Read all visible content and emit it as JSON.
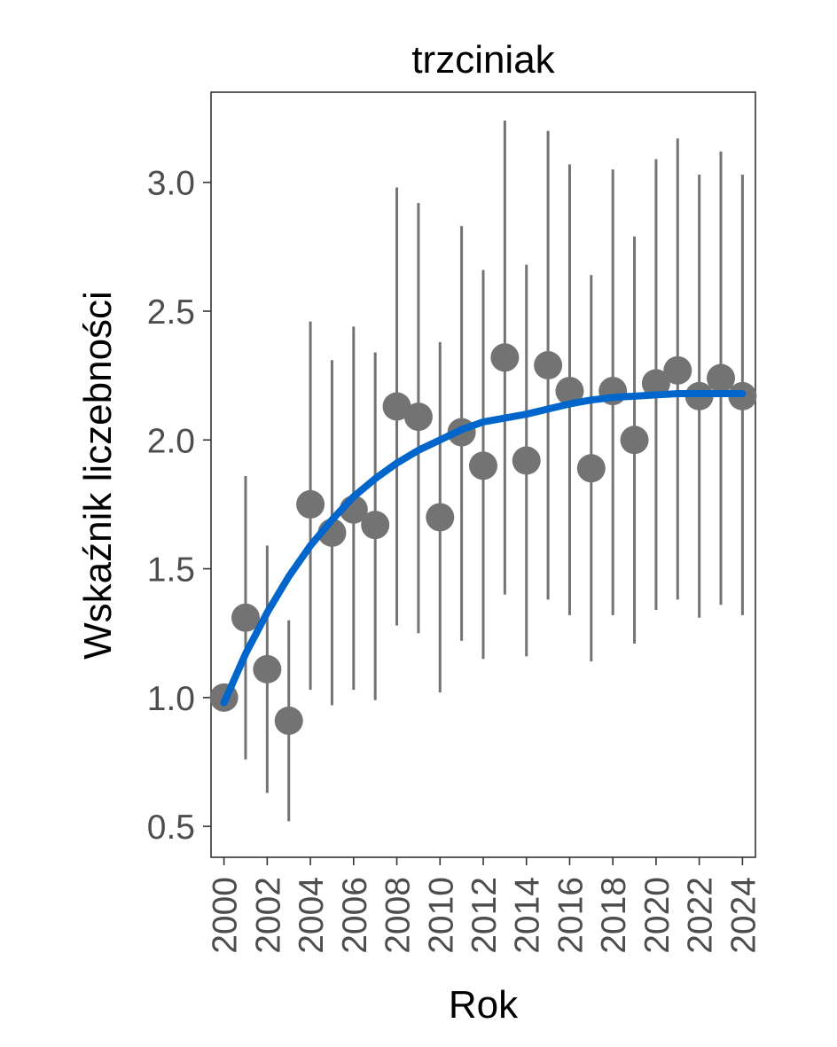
{
  "chart_data": {
    "type": "scatter",
    "title": "trzciniak",
    "xlabel": "Rok",
    "ylabel": "Wskaźnik liczebności",
    "xlim": [
      1999.4,
      2024.6
    ],
    "ylim": [
      0.38,
      3.35
    ],
    "grid": false,
    "x_ticks": [
      "2000",
      "2002",
      "2004",
      "2006",
      "2008",
      "2010",
      "2012",
      "2014",
      "2016",
      "2018",
      "2020",
      "2022",
      "2024"
    ],
    "y_ticks": [
      "0.5",
      "1.0",
      "1.5",
      "2.0",
      "2.5",
      "3.0"
    ],
    "series": [
      {
        "kind": "points_with_error_bars",
        "x": [
          2000,
          2001,
          2002,
          2003,
          2004,
          2005,
          2006,
          2007,
          2008,
          2009,
          2010,
          2011,
          2012,
          2013,
          2014,
          2015,
          2016,
          2017,
          2018,
          2019,
          2020,
          2021,
          2022,
          2023,
          2024
        ],
        "y": [
          1.0,
          1.31,
          1.11,
          0.91,
          1.75,
          1.64,
          1.73,
          1.67,
          2.13,
          2.09,
          1.7,
          2.03,
          1.9,
          2.32,
          1.92,
          2.29,
          2.19,
          1.89,
          2.19,
          2.0,
          2.22,
          2.27,
          2.17,
          2.24,
          2.17
        ],
        "lower": [
          null,
          0.76,
          0.63,
          0.52,
          1.03,
          0.97,
          1.03,
          0.99,
          1.28,
          1.25,
          1.02,
          1.22,
          1.15,
          1.4,
          1.16,
          1.38,
          1.32,
          1.14,
          1.32,
          1.21,
          1.34,
          1.38,
          1.31,
          1.36,
          1.32
        ],
        "upper": [
          null,
          1.86,
          1.59,
          1.3,
          2.46,
          2.31,
          2.44,
          2.34,
          2.98,
          2.92,
          2.38,
          2.83,
          2.66,
          3.24,
          2.68,
          3.2,
          3.07,
          2.64,
          3.05,
          2.79,
          3.09,
          3.17,
          3.03,
          3.12,
          3.03
        ],
        "color": "#737373"
      },
      {
        "kind": "smooth_line",
        "x": [
          2000,
          2001,
          2002,
          2003,
          2004,
          2005,
          2006,
          2007,
          2008,
          2009,
          2010,
          2011,
          2012,
          2013,
          2014,
          2015,
          2016,
          2017,
          2018,
          2019,
          2020,
          2021,
          2022,
          2023,
          2024
        ],
        "y": [
          0.98,
          1.17,
          1.33,
          1.47,
          1.59,
          1.69,
          1.78,
          1.85,
          1.91,
          1.96,
          2.0,
          2.04,
          2.07,
          2.085,
          2.1,
          2.12,
          2.14,
          2.155,
          2.165,
          2.17,
          2.175,
          2.18,
          2.18,
          2.18,
          2.18
        ],
        "color": "#0066CC"
      }
    ]
  }
}
